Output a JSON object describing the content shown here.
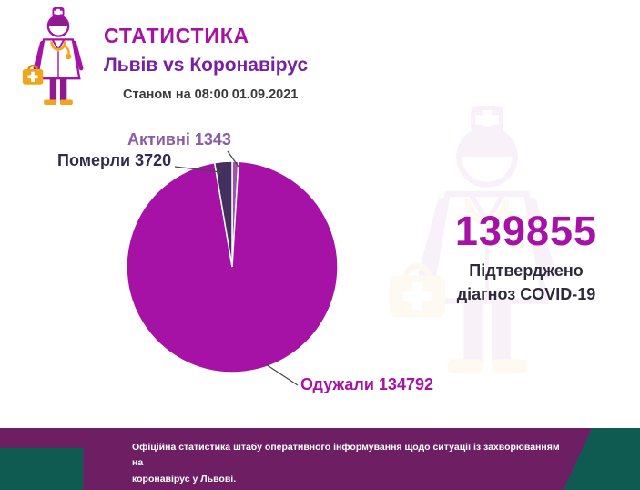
{
  "header": {
    "title": "СТАТИСТИКА",
    "subtitle": "Львів vs Коронавірус",
    "as_of": "Станом на 08:00 01.09.2021"
  },
  "stats": {
    "confirmed_number": "139855",
    "confirmed_line1": "Підтверджено",
    "confirmed_line2": "діагноз COVID-19"
  },
  "chart_data": {
    "type": "pie",
    "title": "Львів vs Коронавірус",
    "as_of": "Станом на 08:00 01.09.2021",
    "total_confirmed": 139855,
    "categories": [
      "Активні",
      "Одужали",
      "Померли"
    ],
    "values": [
      1343,
      134792,
      3720
    ],
    "start_angle": 0,
    "legend_position": "callout-labels",
    "slices": [
      {
        "key": "active",
        "name": "Активні",
        "value": 1343,
        "label": "Активні 1343",
        "color": "#9A57A8"
      },
      {
        "key": "recovered",
        "name": "Одужали",
        "value": 134792,
        "label": "Одужали 134792",
        "color": "#A612A6"
      },
      {
        "key": "deaths",
        "name": "Померли",
        "value": 3720,
        "label": "Померли 3720",
        "color": "#44305E"
      }
    ]
  },
  "labels": {
    "active": "Активні 1343",
    "deaths": "Померли 3720",
    "recovered": "Одужали 134792"
  },
  "footer": {
    "line1": "Офіційна статистика штабу оперативного інформування щодо ситуації із захворюванням на",
    "line2": "коронавірус у Львові."
  },
  "colors": {
    "magenta_primary": "#A612A6",
    "violet_subtitle": "#7B1FA2",
    "deaths_dark": "#44305E",
    "active_purple": "#9A57A8",
    "footer_purple": "#6E1F63",
    "footer_teal": "#0F5B52",
    "icon_amber": "#F2A51B"
  }
}
